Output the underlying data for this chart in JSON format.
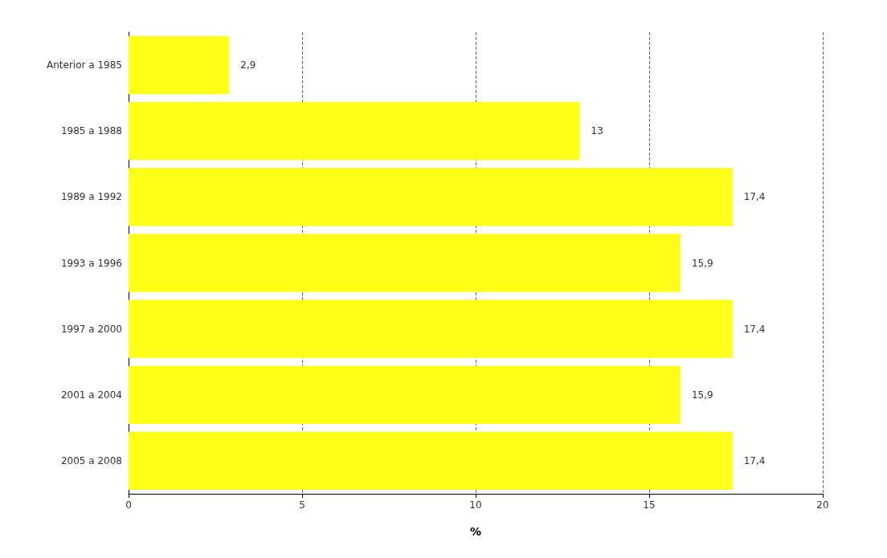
{
  "chart_data": {
    "type": "bar",
    "orientation": "horizontal",
    "categories": [
      "Anterior a 1985",
      "1985 a 1988",
      "1989 a 1992",
      "1993 a 1996",
      "1997 a 2000",
      "2001 a 2004",
      "2005 a 2008"
    ],
    "values": [
      2.9,
      13,
      17.4,
      15.9,
      17.4,
      15.9,
      17.4
    ],
    "value_labels": [
      "2,9",
      "13",
      "17,4",
      "15,9",
      "17,4",
      "15,9",
      "17,4"
    ],
    "color": "#ffff1a",
    "xlabel": "%",
    "xlim": [
      0,
      20
    ],
    "xticks": [
      0,
      5,
      10,
      15,
      20
    ],
    "grid": "x"
  }
}
